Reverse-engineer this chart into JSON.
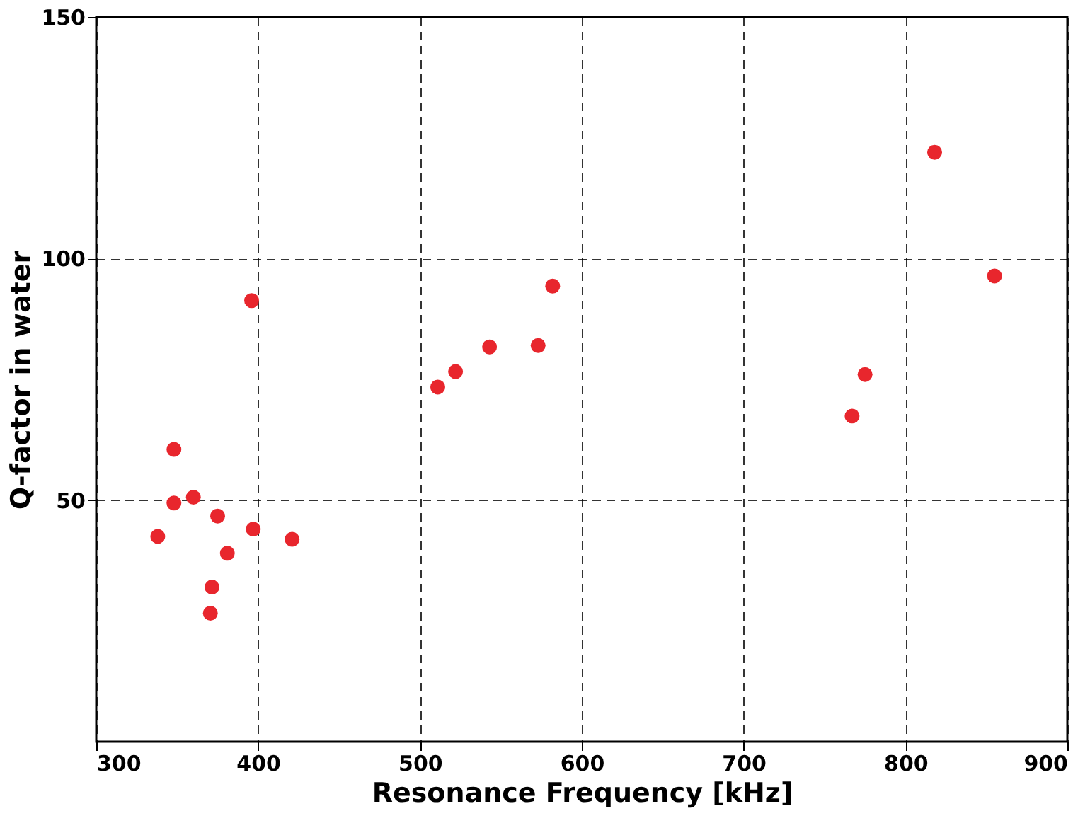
{
  "chart_data": {
    "type": "scatter",
    "xlabel": "Resonance Frequency [kHz]",
    "ylabel": "Q-factor in water",
    "series": [
      {
        "color": "#e8262d",
        "x": [
          338,
          348,
          348,
          360,
          375,
          381,
          371.5,
          370.5,
          397,
          396,
          421,
          511,
          522,
          543,
          573,
          582,
          767,
          775,
          818,
          855
        ],
        "values": [
          42.5,
          60.5,
          49.4,
          50.6,
          46.7,
          39.0,
          32.0,
          26.6,
          44.0,
          91.3,
          41.9,
          73.4,
          76.6,
          81.7,
          82.0,
          94.3,
          67.4,
          76.0,
          122,
          96.4
        ]
      }
    ],
    "xlim": [
      300,
      900
    ],
    "xticks": [
      300,
      400,
      500,
      600,
      700,
      800,
      900
    ],
    "ylim": [
      0,
      150
    ],
    "yticks": [
      50,
      100,
      150
    ],
    "grid": true,
    "marker": "circle",
    "legend": false
  }
}
